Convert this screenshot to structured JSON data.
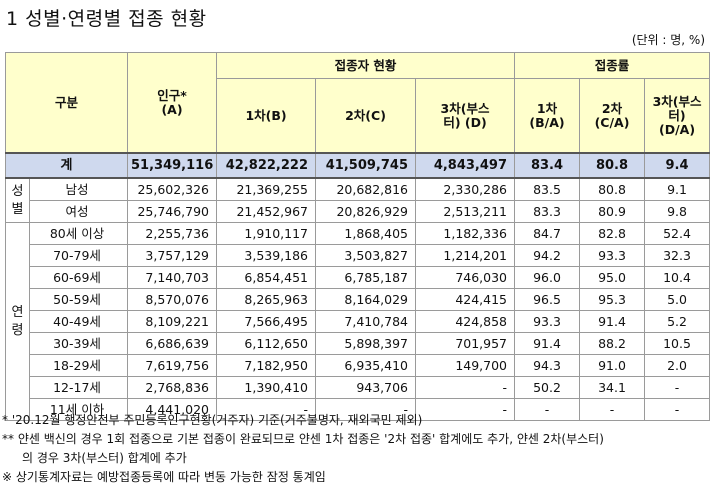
{
  "title": "1 성별·연령별 접종 현황",
  "unit": "(단위 : 명, %)",
  "header": {
    "category": "구분",
    "population_l1": "인구*",
    "population_l2": "(A)",
    "group_vacc": "접종자 현황",
    "group_rate": "접종률",
    "dose1": "1차(B)",
    "dose2": "2차(C)",
    "dose3_l1": "3차(부스",
    "dose3_l2": "터) (D)",
    "r1_l1": "1차",
    "r1_l2": "(B/A)",
    "r2_l1": "2차",
    "r2_l2": "(C/A)",
    "r3_l1": "3차(부스",
    "r3_l2": "터)",
    "r3_l3": "(D/A)"
  },
  "total": {
    "label": "계",
    "pop": "51,349,116",
    "d1": "42,822,222",
    "d2": "41,509,745",
    "d3": "4,843,497",
    "r1": "83.4",
    "r2": "80.8",
    "r3": "9.4"
  },
  "sex_label": "성별",
  "age_label": "연령",
  "sex_rows": [
    {
      "label": "남성",
      "pop": "25,602,326",
      "d1": "21,369,255",
      "d2": "20,682,816",
      "d3": "2,330,286",
      "r1": "83.5",
      "r2": "80.8",
      "r3": "9.1"
    },
    {
      "label": "여성",
      "pop": "25,746,790",
      "d1": "21,452,967",
      "d2": "20,826,929",
      "d3": "2,513,211",
      "r1": "83.3",
      "r2": "80.9",
      "r3": "9.8"
    }
  ],
  "age_rows": [
    {
      "label": "80세 이상",
      "pop": "2,255,736",
      "d1": "1,910,117",
      "d2": "1,868,405",
      "d3": "1,182,336",
      "r1": "84.7",
      "r2": "82.8",
      "r3": "52.4"
    },
    {
      "label": "70-79세",
      "pop": "3,757,129",
      "d1": "3,539,186",
      "d2": "3,503,827",
      "d3": "1,214,201",
      "r1": "94.2",
      "r2": "93.3",
      "r3": "32.3"
    },
    {
      "label": "60-69세",
      "pop": "7,140,703",
      "d1": "6,854,451",
      "d2": "6,785,187",
      "d3": "746,030",
      "r1": "96.0",
      "r2": "95.0",
      "r3": "10.4"
    },
    {
      "label": "50-59세",
      "pop": "8,570,076",
      "d1": "8,265,963",
      "d2": "8,164,029",
      "d3": "424,415",
      "r1": "96.5",
      "r2": "95.3",
      "r3": "5.0"
    },
    {
      "label": "40-49세",
      "pop": "8,109,221",
      "d1": "7,566,495",
      "d2": "7,410,784",
      "d3": "424,858",
      "r1": "93.3",
      "r2": "91.4",
      "r3": "5.2"
    },
    {
      "label": "30-39세",
      "pop": "6,686,639",
      "d1": "6,112,650",
      "d2": "5,898,397",
      "d3": "701,957",
      "r1": "91.4",
      "r2": "88.2",
      "r3": "10.5"
    },
    {
      "label": "18-29세",
      "pop": "7,619,756",
      "d1": "7,182,950",
      "d2": "6,935,410",
      "d3": "149,700",
      "r1": "94.3",
      "r2": "91.0",
      "r3": "2.0"
    },
    {
      "label": "12-17세",
      "pop": "2,768,836",
      "d1": "1,390,410",
      "d2": "943,706",
      "d3": "-",
      "r1": "50.2",
      "r2": "34.1",
      "r3": "-"
    },
    {
      "label": "11세 이하",
      "pop": "4,441,020",
      "d1": "-",
      "d2": "-",
      "d3": "-",
      "r1": "-",
      "r2": "-",
      "r3": "-"
    }
  ],
  "notes": [
    "* '20.12월 행정안전부 주민등록인구현황(거주자) 기준(거주불명자, 재외국민 제외)",
    "** 얀센 백신의 경우 1회 접종으로 기본 접종이 완료되므로 얀센 1차 접종은 '2차 접종' 합계에도 추가, 얀센 2차(부스터)",
    "의 경우 3차(부스터) 합계에 추가",
    "※ 상기통계자료는 예방접종등록에 따라 변동 가능한 잠정 통계임"
  ]
}
